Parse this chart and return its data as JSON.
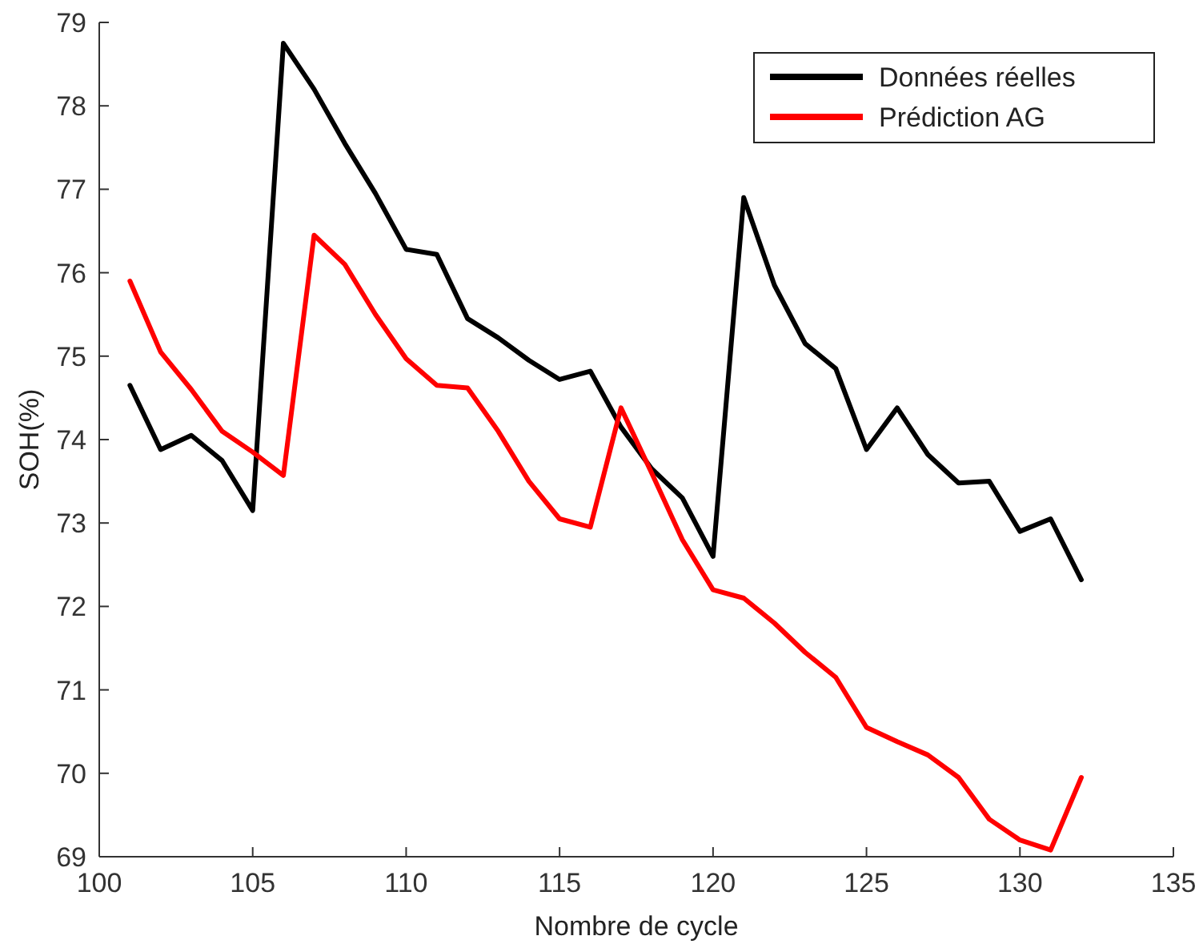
{
  "chart_data": {
    "type": "line",
    "xlabel": "Nombre de cycle",
    "ylabel": "SOH(%)",
    "x": [
      101,
      102,
      103,
      104,
      105,
      106,
      107,
      108,
      109,
      110,
      111,
      112,
      113,
      114,
      115,
      116,
      117,
      118,
      119,
      120,
      121,
      122,
      123,
      124,
      125,
      126,
      127,
      128,
      129,
      130,
      131,
      132
    ],
    "series": [
      {
        "name": "Données réelles",
        "color": "#000000",
        "values": [
          74.65,
          73.88,
          74.05,
          73.75,
          73.15,
          78.75,
          78.2,
          77.55,
          76.95,
          76.28,
          76.22,
          75.45,
          75.22,
          74.95,
          74.72,
          74.82,
          74.15,
          73.65,
          73.3,
          72.6,
          76.9,
          75.85,
          75.15,
          74.85,
          73.88,
          74.38,
          73.82,
          73.48,
          73.5,
          72.9,
          73.05,
          72.32
        ]
      },
      {
        "name": "Prédiction AG",
        "color": "#ff0000",
        "values": [
          75.9,
          75.05,
          74.6,
          74.1,
          73.85,
          73.57,
          76.45,
          76.1,
          75.5,
          74.97,
          74.65,
          74.62,
          74.1,
          73.5,
          73.05,
          72.95,
          74.38,
          73.6,
          72.8,
          72.2,
          72.1,
          71.8,
          71.45,
          71.15,
          70.55,
          70.38,
          70.22,
          69.95,
          69.45,
          69.2,
          69.08,
          69.95
        ]
      }
    ],
    "xlim": [
      100,
      135
    ],
    "xticks": [
      100,
      105,
      110,
      115,
      120,
      125,
      130,
      135
    ],
    "ylim": [
      69,
      79
    ],
    "yticks": [
      69,
      70,
      71,
      72,
      73,
      74,
      75,
      76,
      77,
      78,
      79
    ],
    "legend": "top right",
    "grid": false,
    "marker": "none",
    "line_style": "solid"
  }
}
